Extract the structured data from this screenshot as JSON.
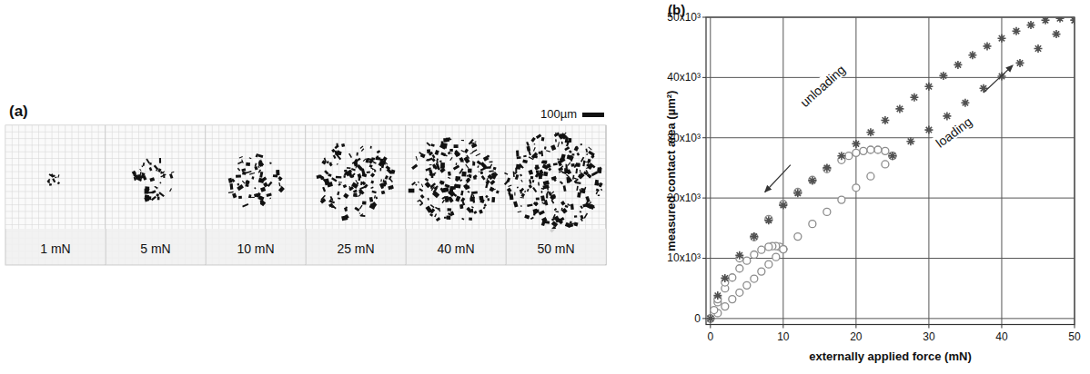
{
  "chart_data": [
    {
      "type": "image_strip",
      "panel": "(a)",
      "scale_bar": "100µm",
      "labels": [
        "1 mN",
        "5 mN",
        "10 mN",
        "25 mN",
        "40 mN",
        "50 mN"
      ]
    },
    {
      "type": "scatter",
      "panel": "(b)",
      "x_label": "externally applied force (mN)",
      "y_label": "measured contact area (µm²)",
      "xlim": [
        -0.6,
        50
      ],
      "ylim": [
        -1000,
        50000
      ],
      "xticks": [
        0,
        10,
        20,
        30,
        40,
        50
      ],
      "yticks": [
        0,
        {
          "value": 10000,
          "label": "10x10³"
        },
        {
          "value": 20000,
          "label": "20x10³"
        },
        {
          "value": 30000,
          "label": "30x10³"
        },
        {
          "value": 40000,
          "label": "40x10³"
        },
        {
          "value": 50000,
          "label": "50x10³"
        }
      ],
      "grid": true,
      "annotations": [
        {
          "text": "loading"
        },
        {
          "text": "unloading"
        }
      ],
      "series": [
        {
          "color": "#8c8c8c",
          "marker": "circle",
          "x": [
            0,
            1,
            2,
            3,
            4,
            5,
            6,
            7,
            8,
            9,
            10
          ],
          "values": [
            0,
            900,
            2000,
            3200,
            4300,
            5500,
            6600,
            7800,
            9000,
            10200,
            11500
          ]
        },
        {
          "color": "#8c8c8c",
          "marker": "circle",
          "x": [
            10,
            9.5,
            9,
            8.5,
            8,
            7,
            6,
            5,
            4,
            3,
            2,
            1,
            0.5,
            0
          ],
          "values": [
            11500,
            11900,
            12000,
            12000,
            11900,
            11400,
            10600,
            9600,
            8300,
            6800,
            5000,
            2700,
            1400,
            0
          ]
        },
        {
          "color": "#8c8c8c",
          "marker": "circle",
          "x": [
            10,
            12,
            14,
            16,
            18,
            20,
            22,
            24,
            25
          ],
          "values": [
            11500,
            13600,
            15700,
            17700,
            19700,
            21700,
            23600,
            25600,
            27000
          ]
        },
        {
          "color": "#8c8c8c",
          "marker": "circle",
          "x": [
            25,
            24,
            23,
            22,
            21,
            20,
            19,
            18,
            16,
            14,
            12,
            10,
            8,
            6,
            4,
            2,
            1,
            0
          ],
          "values": [
            27000,
            27800,
            28000,
            28000,
            27800,
            27500,
            27000,
            26300,
            24800,
            23000,
            21000,
            19000,
            16500,
            13500,
            10000,
            6000,
            3200,
            0
          ]
        },
        {
          "color": "#505050",
          "marker": "star",
          "x": [
            25,
            27.5,
            30,
            32.5,
            35,
            37.5,
            40,
            42.5,
            45,
            47.5,
            50
          ],
          "values": [
            27000,
            29400,
            31300,
            33600,
            35800,
            38200,
            40200,
            42400,
            44800,
            47200,
            49500
          ]
        },
        {
          "color": "#505050",
          "marker": "star",
          "x": [
            50,
            48,
            46,
            44,
            42,
            40,
            38,
            36,
            34,
            32,
            30,
            28,
            26,
            24,
            22,
            20,
            18,
            16,
            14,
            12,
            10,
            8,
            6,
            4,
            2,
            1,
            0
          ],
          "values": [
            49500,
            49800,
            49500,
            48700,
            47700,
            46500,
            45200,
            43700,
            42100,
            40300,
            38500,
            36700,
            34800,
            32900,
            30900,
            29000,
            27000,
            25000,
            22900,
            20800,
            18800,
            16300,
            13600,
            10500,
            6700,
            3800,
            0
          ]
        }
      ]
    }
  ]
}
